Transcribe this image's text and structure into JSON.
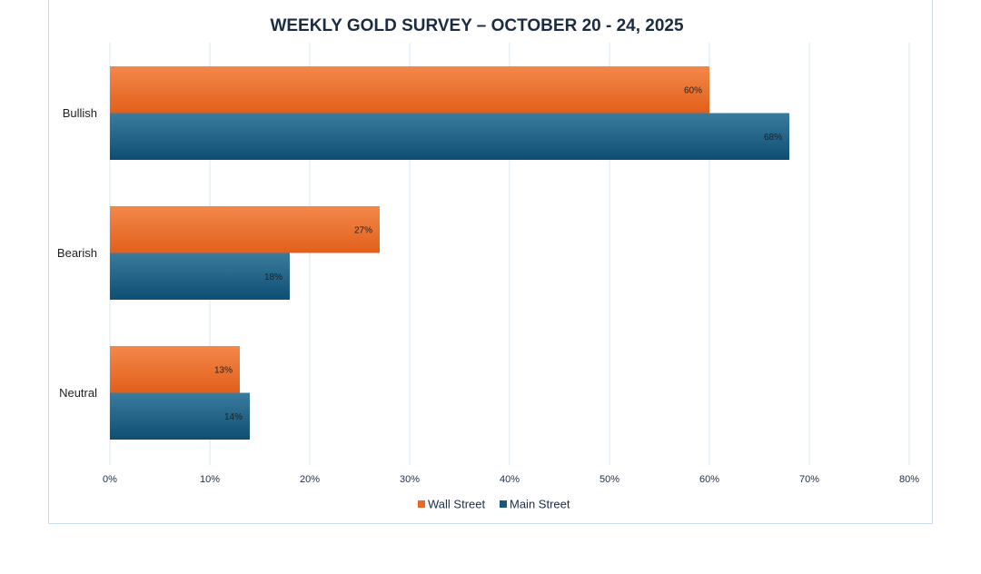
{
  "chart_data": {
    "type": "bar",
    "orientation": "horizontal",
    "title": "WEEKLY GOLD SURVEY – OCTOBER 20 - 24, 2025",
    "categories": [
      "Bullish",
      "Bearish",
      "Neutral"
    ],
    "series": [
      {
        "name": "Wall Street",
        "values": [
          60,
          27,
          13
        ],
        "labels": [
          "60%",
          "27%",
          "13%"
        ],
        "color": "#e8692a"
      },
      {
        "name": "Main Street",
        "values": [
          68,
          18,
          14
        ],
        "labels": [
          "68%",
          "18%",
          "14%"
        ],
        "color": "#155a7e"
      }
    ],
    "xlim": [
      0,
      80
    ],
    "x_ticks": [
      0,
      10,
      20,
      30,
      40,
      50,
      60,
      70,
      80
    ],
    "x_tick_labels": [
      "0%",
      "10%",
      "20%",
      "30%",
      "40%",
      "50%",
      "60%",
      "70%",
      "80%"
    ],
    "grid": "vertical",
    "legend_position": "bottom"
  }
}
